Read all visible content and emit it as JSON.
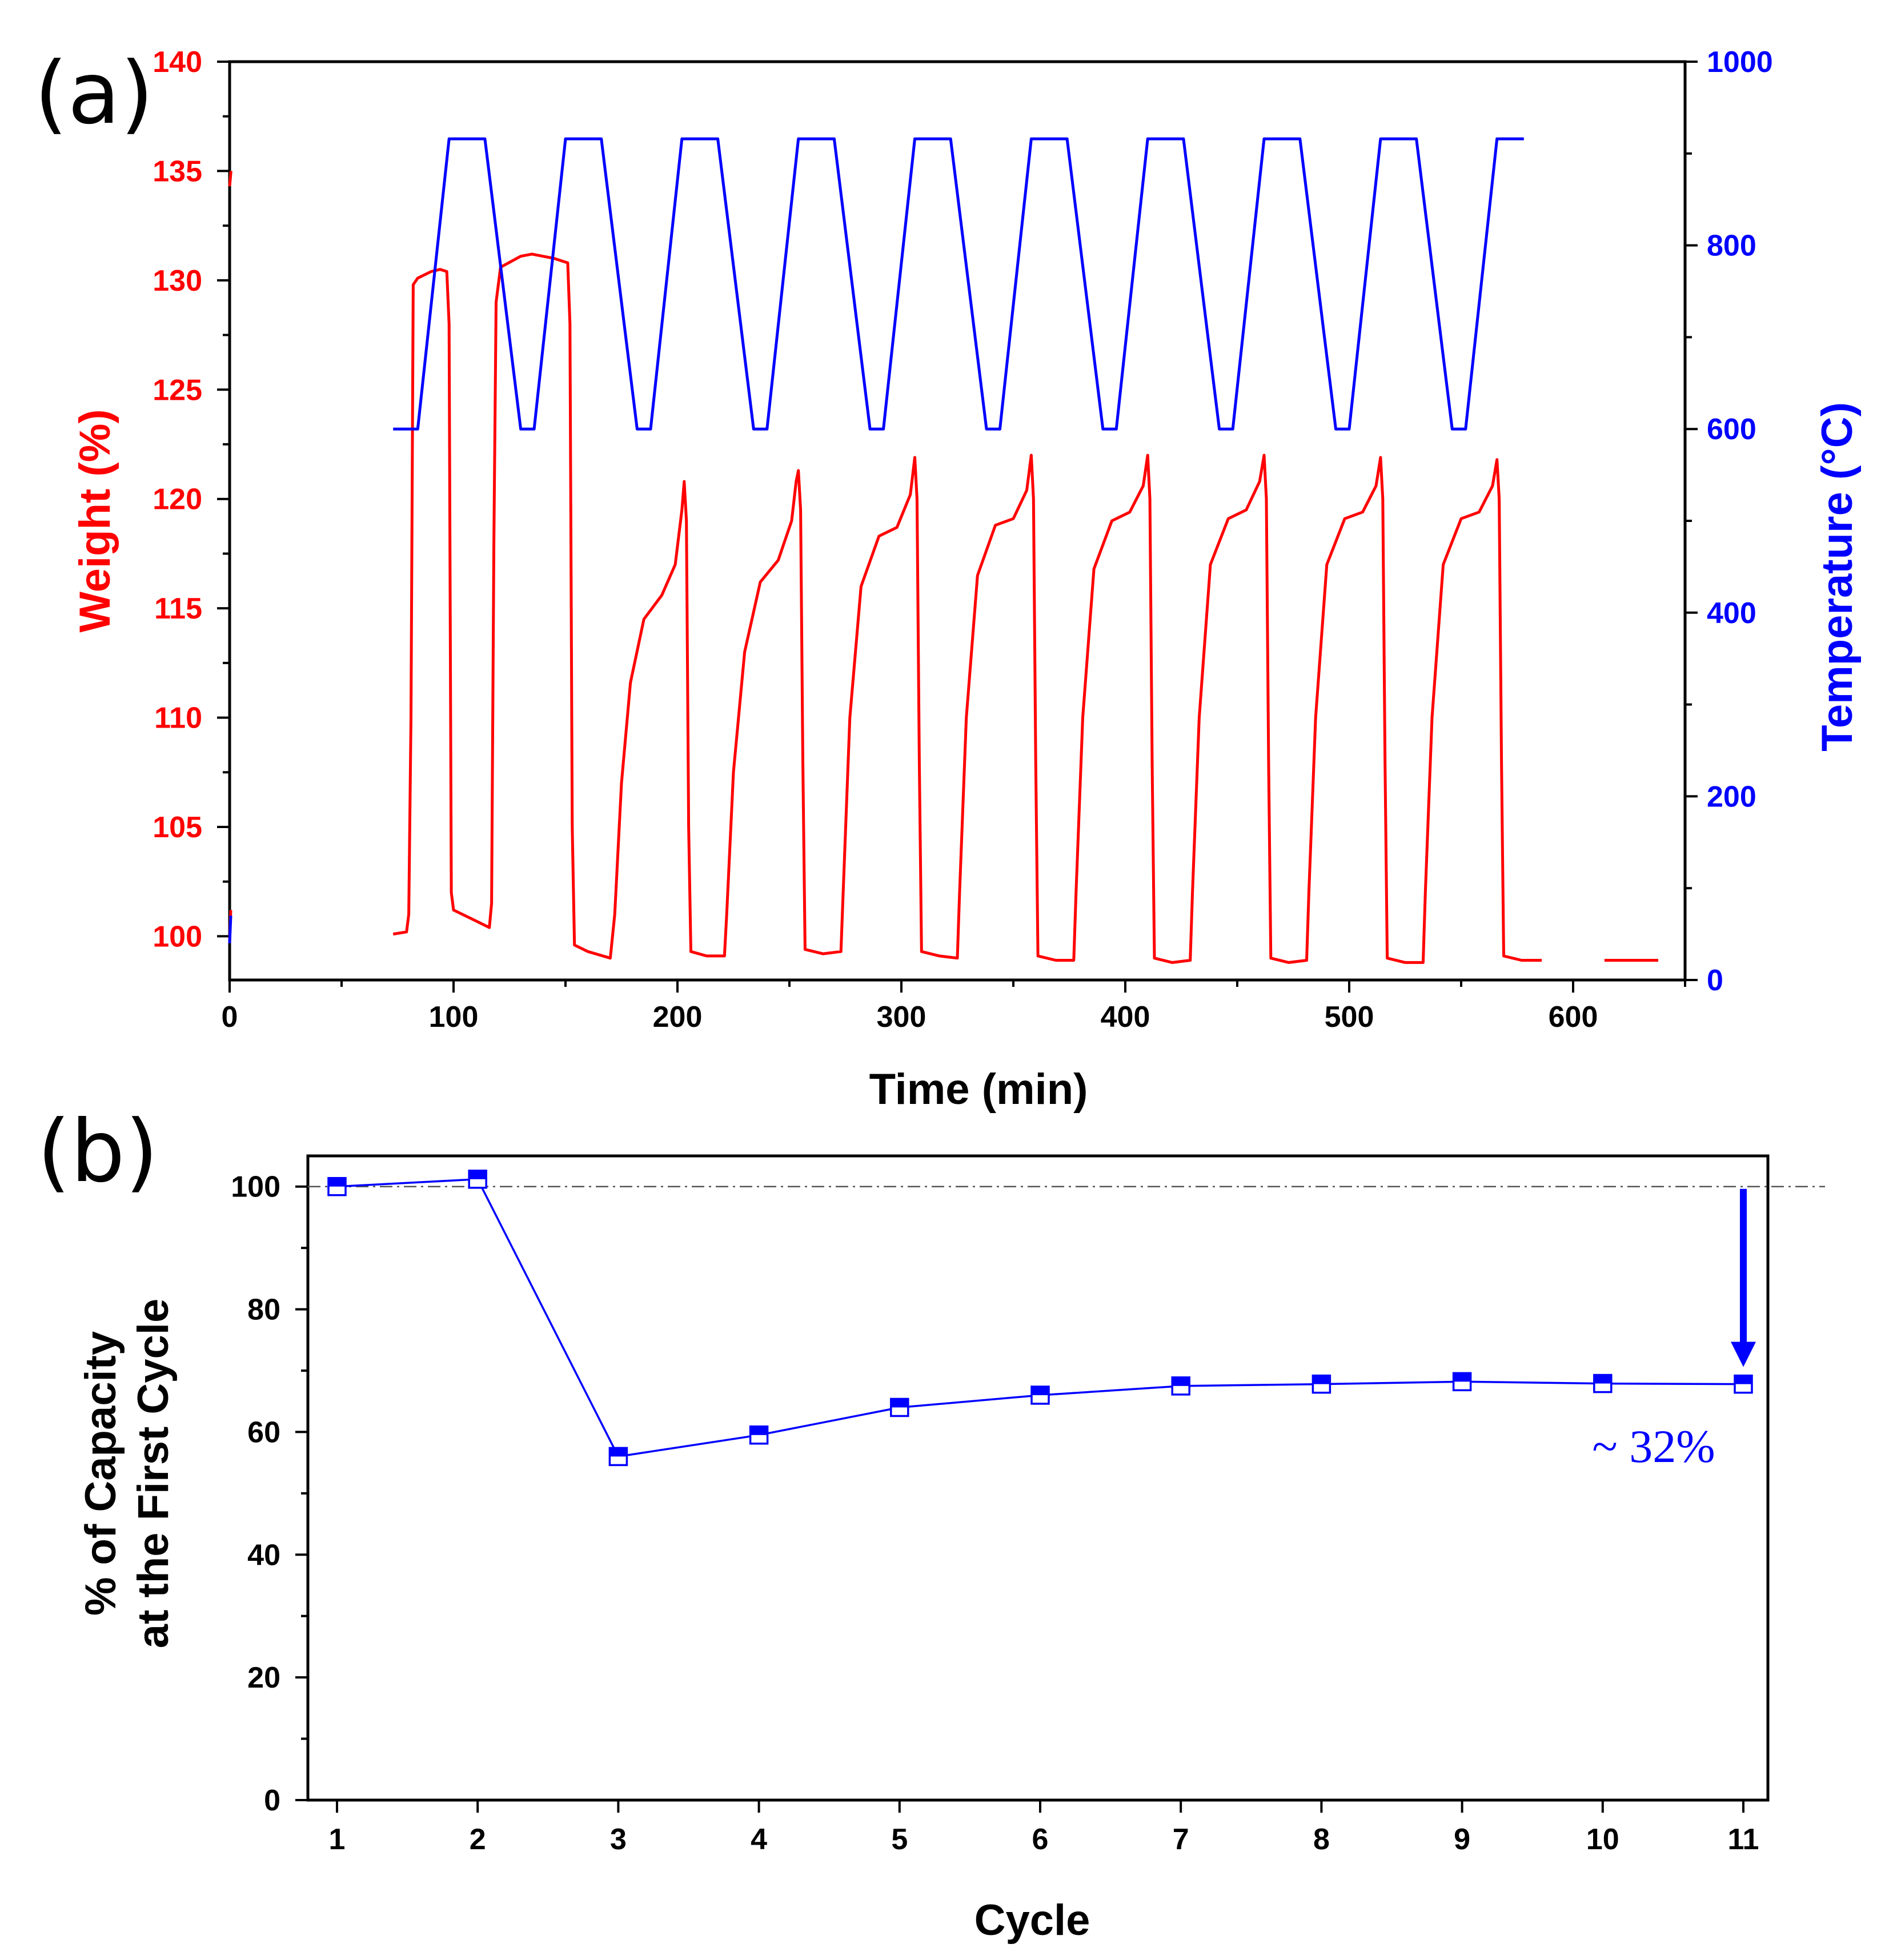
{
  "colors": {
    "weight": "#ff0000",
    "temperature": "#0000ff",
    "axis": "#000000",
    "reference_line": "#555555"
  },
  "chart_data": [
    {
      "panel_label": "(a)",
      "type": "line",
      "xlabel": "Time (min)",
      "ylabel_left": "Weight (%)",
      "ylabel_right": "Temperature (°C)",
      "xlim": [
        0,
        650
      ],
      "ylim_left": [
        98,
        140
      ],
      "ylim_right": [
        0,
        1000
      ],
      "x_ticks": [
        "0",
        "100",
        "200",
        "300",
        "400",
        "500",
        "600"
      ],
      "y_left_ticks": [
        "100",
        "105",
        "110",
        "115",
        "120",
        "125",
        "130",
        "135",
        "140"
      ],
      "y_right_ticks": [
        "0",
        "200",
        "400",
        "600",
        "800",
        "1000"
      ],
      "series": [
        {
          "name": "Weight",
          "axis": "left",
          "segments": [
            [
              [
                0,
                99.8
              ],
              [
                0.5,
                101.2
              ]
            ],
            [
              [
                0,
                134.3
              ],
              [
                0.6,
                135
              ]
            ],
            [
              [
                73,
                100.1
              ],
              [
                79,
                100.2
              ],
              [
                80,
                101
              ],
              [
                81,
                110
              ],
              [
                82,
                129.8
              ],
              [
                84,
                130.1
              ],
              [
                90,
                130.4
              ],
              [
                94,
                130.5
              ],
              [
                97,
                130.4
              ],
              [
                98,
                128
              ],
              [
                99,
                102
              ],
              [
                100,
                101.2
              ],
              [
                108,
                100.8
              ],
              [
                116,
                100.4
              ],
              [
                117,
                101.5
              ],
              [
                118,
                118
              ],
              [
                119,
                129
              ],
              [
                121,
                130.6
              ],
              [
                130,
                131.1
              ],
              [
                135,
                131.2
              ],
              [
                145,
                131
              ],
              [
                151,
                130.8
              ],
              [
                152,
                128
              ],
              [
                153,
                105
              ],
              [
                154,
                99.6
              ],
              [
                160,
                99.3
              ],
              [
                170,
                99
              ],
              [
                172,
                101
              ],
              [
                175,
                107
              ],
              [
                179,
                111.6
              ],
              [
                185,
                114.5
              ],
              [
                193,
                115.6
              ],
              [
                199,
                117
              ],
              [
                202,
                119.5
              ],
              [
                203,
                120.8
              ],
              [
                204,
                119
              ],
              [
                205,
                105
              ],
              [
                206,
                99.3
              ],
              [
                213,
                99.1
              ],
              [
                221,
                99.1
              ],
              [
                222,
                101
              ],
              [
                225,
                107.5
              ],
              [
                230,
                113
              ],
              [
                237,
                116.2
              ],
              [
                245,
                117.2
              ],
              [
                251,
                119
              ],
              [
                253,
                120.8
              ],
              [
                254,
                121.3
              ],
              [
                255,
                119.5
              ],
              [
                256,
                108
              ],
              [
                257,
                99.4
              ],
              [
                265,
                99.2
              ],
              [
                273,
                99.3
              ],
              [
                274,
                102
              ],
              [
                277,
                110
              ],
              [
                282,
                116
              ],
              [
                290,
                118.3
              ],
              [
                298,
                118.7
              ],
              [
                304,
                120.2
              ],
              [
                306,
                121.9
              ],
              [
                307,
                120
              ],
              [
                308,
                108
              ],
              [
                309,
                99.3
              ],
              [
                317,
                99.1
              ],
              [
                325,
                99
              ],
              [
                326,
                102
              ],
              [
                329,
                110
              ],
              [
                334,
                116.5
              ],
              [
                342,
                118.8
              ],
              [
                350,
                119.1
              ],
              [
                356,
                120.4
              ],
              [
                358,
                122
              ],
              [
                359,
                120
              ],
              [
                360,
                108
              ],
              [
                361,
                99.1
              ],
              [
                369,
                98.9
              ],
              [
                377,
                98.9
              ],
              [
                378,
                102
              ],
              [
                381,
                110
              ],
              [
                386,
                116.8
              ],
              [
                394,
                119
              ],
              [
                402,
                119.4
              ],
              [
                408,
                120.6
              ],
              [
                410,
                122
              ],
              [
                411,
                120
              ],
              [
                412,
                108
              ],
              [
                413,
                99
              ],
              [
                421,
                98.8
              ],
              [
                429,
                98.9
              ],
              [
                430,
                102
              ],
              [
                433,
                110
              ],
              [
                438,
                117
              ],
              [
                446,
                119.1
              ],
              [
                454,
                119.5
              ],
              [
                460,
                120.8
              ],
              [
                462,
                122
              ],
              [
                463,
                120
              ],
              [
                464,
                108
              ],
              [
                465,
                99
              ],
              [
                473,
                98.8
              ],
              [
                481,
                98.9
              ],
              [
                482,
                102
              ],
              [
                485,
                110
              ],
              [
                490,
                117
              ],
              [
                498,
                119.1
              ],
              [
                506,
                119.4
              ],
              [
                512,
                120.6
              ],
              [
                514,
                121.9
              ],
              [
                515,
                120
              ],
              [
                516,
                108
              ],
              [
                517,
                99
              ],
              [
                525,
                98.8
              ],
              [
                533,
                98.8
              ],
              [
                534,
                102
              ],
              [
                537,
                110
              ],
              [
                542,
                117
              ],
              [
                550,
                119.1
              ],
              [
                558,
                119.4
              ],
              [
                564,
                120.6
              ],
              [
                566,
                121.8
              ],
              [
                567,
                120
              ],
              [
                568,
                108
              ],
              [
                569,
                99.1
              ],
              [
                577,
                98.9
              ],
              [
                586,
                98.9
              ]
            ],
            [
              [
                614,
                98.9
              ],
              [
                638,
                98.9
              ]
            ]
          ]
        },
        {
          "name": "Temperature",
          "axis": "right",
          "segments": [
            [
              [
                0,
                40
              ],
              [
                0.5,
                70
              ]
            ],
            [
              [
                73,
                600
              ],
              [
                84,
                600
              ],
              [
                98,
                916
              ],
              [
                114,
                916
              ],
              [
                130,
                600
              ],
              [
                136,
                600
              ],
              [
                150,
                916
              ],
              [
                166,
                916
              ],
              [
                182,
                600
              ],
              [
                188,
                600
              ],
              [
                202,
                916
              ],
              [
                218,
                916
              ],
              [
                234,
                600
              ],
              [
                240,
                600
              ],
              [
                254,
                916
              ],
              [
                270,
                916
              ],
              [
                286,
                600
              ],
              [
                292,
                600
              ],
              [
                306,
                916
              ],
              [
                322,
                916
              ],
              [
                338,
                600
              ],
              [
                344,
                600
              ],
              [
                358,
                916
              ],
              [
                374,
                916
              ],
              [
                390,
                600
              ],
              [
                396,
                600
              ],
              [
                410,
                916
              ],
              [
                426,
                916
              ],
              [
                442,
                600
              ],
              [
                448,
                600
              ],
              [
                462,
                916
              ],
              [
                478,
                916
              ],
              [
                494,
                600
              ],
              [
                500,
                600
              ],
              [
                514,
                916
              ],
              [
                530,
                916
              ],
              [
                546,
                600
              ],
              [
                552,
                600
              ],
              [
                566,
                916
              ],
              [
                578,
                916
              ]
            ]
          ]
        }
      ]
    },
    {
      "panel_label": "(b)",
      "type": "line",
      "xlabel": "Cycle",
      "ylabel": "% of Capacity",
      "ylabel_line2": "at the First Cycle",
      "categories": [
        "1",
        "2",
        "3",
        "4",
        "5",
        "6",
        "7",
        "8",
        "9",
        "10",
        "11"
      ],
      "values": [
        100,
        101.2,
        56,
        59.5,
        64,
        66,
        67.5,
        67.8,
        68.2,
        67.9,
        67.8
      ],
      "ylim": [
        0,
        105
      ],
      "y_ticks": [
        "0",
        "20",
        "40",
        "60",
        "80",
        "100"
      ],
      "reference_line": 100,
      "marker": "half-filled-square",
      "annotation": "~ 32%",
      "arrow_from": 100,
      "arrow_to": 68
    }
  ]
}
